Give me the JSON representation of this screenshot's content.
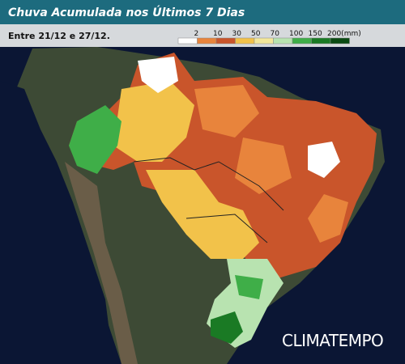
{
  "header": {
    "title": "Chuva Acumulada nos Últimos 7 Dias",
    "subtitle": "Entre 21/12 e 27/12."
  },
  "legend": {
    "colors": [
      "#ffffff",
      "#e8843c",
      "#c9552b",
      "#f2c24a",
      "#f3e79a",
      "#b8e3b0",
      "#3fae48",
      "#1a7a24",
      "#0a4a12"
    ],
    "labels": [
      "2",
      "10",
      "30",
      "50",
      "70",
      "100",
      "150",
      "200(mm)"
    ]
  },
  "brand": "CLIMATEMPO"
}
